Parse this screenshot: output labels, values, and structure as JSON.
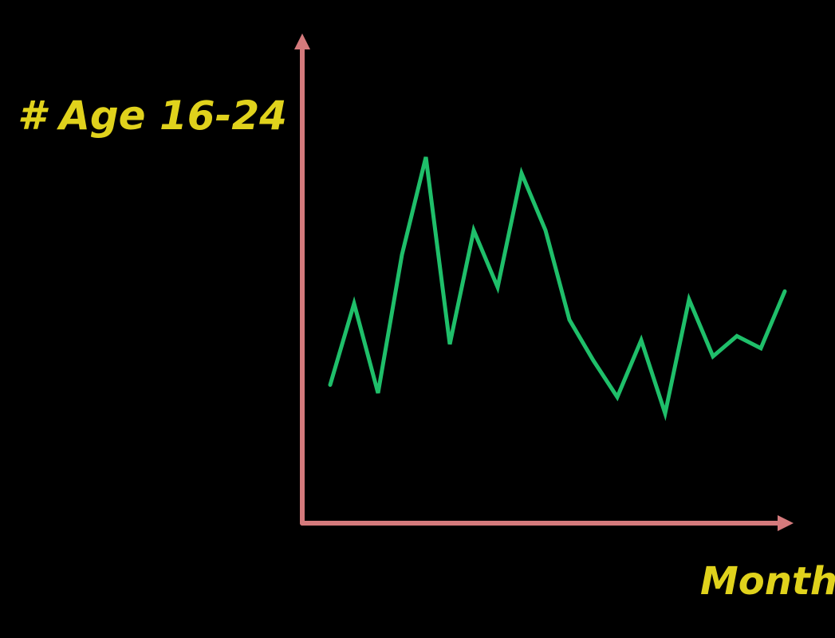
{
  "chart_data": {
    "type": "line",
    "ylabel": "# Age 16-24",
    "xlabel": "Month",
    "x": [
      1,
      2,
      3,
      4,
      5,
      6,
      7,
      8,
      9,
      10,
      11,
      12,
      13,
      14,
      15,
      16,
      17,
      18,
      19,
      20
    ],
    "series": [
      {
        "values": [
          34,
          54,
          32,
          66,
          90,
          44,
          72,
          58,
          86,
          72,
          50,
          40,
          31,
          45,
          27,
          55,
          41,
          46,
          43,
          57
        ]
      }
    ],
    "xlim": [
      0,
      21
    ],
    "ylim": [
      0,
      100
    ],
    "grid": false,
    "colors": {
      "background": "#000000",
      "axis": "#d47a7c",
      "line": "#1fbf6a",
      "labels": "#e0d21c"
    }
  }
}
